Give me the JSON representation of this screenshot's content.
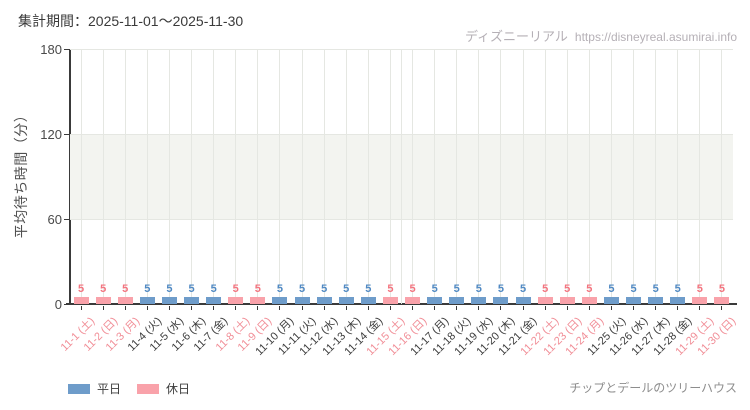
{
  "header": {
    "period_label": "集計期間：2025-11-01～2025-11-30"
  },
  "watermark": {
    "site_name": "ディズニーリアル",
    "site_url": "https://disneyreal.asumirai.info"
  },
  "footer": {
    "attraction_name": "チップとデールのツリーハウス"
  },
  "legend": {
    "items": [
      {
        "label": "平日",
        "type": "weekday"
      },
      {
        "label": "休日",
        "type": "holiday"
      }
    ]
  },
  "colors": {
    "weekday_bar": "#6e9cca",
    "holiday_bar": "#f9a2aa",
    "weekday_value": "#5089c3",
    "holiday_value": "#f3747f",
    "weekday_tick_label": "#3d3d3d",
    "holiday_tick_label": "#f18e97",
    "band": "#f3f4f0",
    "gridline": "#e5e7e2",
    "axis": "#3a3a3a"
  },
  "chart_data": {
    "type": "bar",
    "title": "",
    "xlabel": "",
    "ylabel": "平均待ち時間（分）",
    "unit": "分",
    "ylim": [
      0,
      180
    ],
    "yticks": [
      0,
      60,
      120,
      180
    ],
    "band": {
      "from": 60,
      "to": 120
    },
    "grid": true,
    "legend_position": "bottom-left",
    "categories": [
      "11-1 (土)",
      "11-2 (日)",
      "11-3 (月)",
      "11-4 (火)",
      "11-5 (水)",
      "11-6 (木)",
      "11-7 (金)",
      "11-8 (土)",
      "11-9 (日)",
      "11-10 (月)",
      "11-11 (火)",
      "11-12 (水)",
      "11-13 (木)",
      "11-14 (金)",
      "11-15 (土)",
      "11-16 (日)",
      "11-17 (月)",
      "11-18 (火)",
      "11-19 (水)",
      "11-20 (木)",
      "11-21 (金)",
      "11-22 (土)",
      "11-23 (日)",
      "11-24 (月)",
      "11-25 (火)",
      "11-26 (水)",
      "11-27 (木)",
      "11-28 (金)",
      "11-29 (土)",
      "11-30 (日)"
    ],
    "values": [
      5,
      5,
      5,
      5,
      5,
      5,
      5,
      5,
      5,
      5,
      5,
      5,
      5,
      5,
      5,
      5,
      5,
      5,
      5,
      5,
      5,
      5,
      5,
      5,
      5,
      5,
      5,
      5,
      5,
      5
    ],
    "day_types": [
      "holiday",
      "holiday",
      "holiday",
      "weekday",
      "weekday",
      "weekday",
      "weekday",
      "holiday",
      "holiday",
      "weekday",
      "weekday",
      "weekday",
      "weekday",
      "weekday",
      "holiday",
      "holiday",
      "weekday",
      "weekday",
      "weekday",
      "weekday",
      "weekday",
      "holiday",
      "holiday",
      "holiday",
      "weekday",
      "weekday",
      "weekday",
      "weekday",
      "holiday",
      "holiday"
    ]
  }
}
